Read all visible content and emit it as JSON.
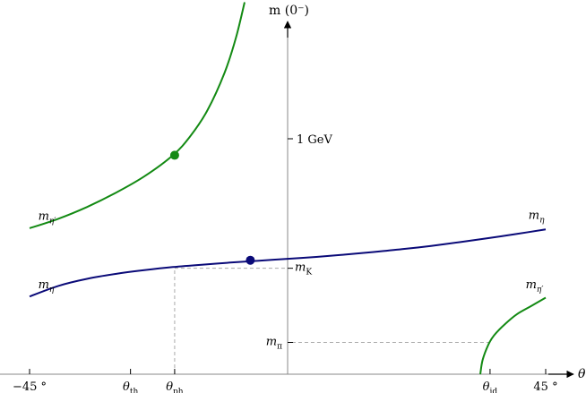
{
  "chart_data": {
    "type": "line",
    "title": "",
    "xlabel": "θ",
    "ylabel": "m (0⁻)",
    "xlim": [
      -45,
      45
    ],
    "grid": false,
    "x_ticks": [
      {
        "x": -45,
        "label": "−45 °"
      },
      {
        "x": -27.4,
        "label": "θ",
        "sub": "th"
      },
      {
        "x": -19.7,
        "label": "θ",
        "sub": "ph"
      },
      {
        "x": 35.3,
        "label": "θ",
        "sub": "id"
      },
      {
        "x": 45,
        "label": "45 °"
      }
    ],
    "y_ticks": [
      {
        "y": 1.0,
        "label": "1 GeV"
      },
      {
        "y": 0.45,
        "label": "m",
        "sub": "K"
      },
      {
        "y": 0.135,
        "label": "m",
        "sub": "π"
      }
    ],
    "series": [
      {
        "name": "m_η",
        "color": "#0a0a78",
        "x": [
          -45,
          -40,
          -35,
          -30,
          -25,
          -20,
          -15,
          -10,
          -5,
          0,
          5,
          10,
          15,
          20,
          25,
          30,
          35,
          40,
          45
        ],
        "y": [
          0.33,
          0.375,
          0.405,
          0.426,
          0.442,
          0.455,
          0.465,
          0.474,
          0.482,
          0.49,
          0.498,
          0.508,
          0.519,
          0.531,
          0.545,
          0.561,
          0.578,
          0.596,
          0.615
        ]
      },
      {
        "name": "m_η′ (left branch)",
        "color": "#138a13",
        "x": [
          -45,
          -40,
          -35,
          -30,
          -25,
          -20,
          -17,
          -14,
          -11,
          -9,
          -7.5
        ],
        "y": [
          0.62,
          0.66,
          0.71,
          0.77,
          0.84,
          0.93,
          1.01,
          1.12,
          1.28,
          1.43,
          1.58
        ]
      },
      {
        "name": "m_η′ (right branch)",
        "color": "#138a13",
        "x": [
          33.6,
          34,
          35,
          36,
          38,
          40,
          42.5,
          45
        ],
        "y": [
          0.0,
          0.06,
          0.125,
          0.165,
          0.215,
          0.255,
          0.29,
          0.325
        ]
      }
    ],
    "markers": [
      {
        "x": -19.7,
        "y": 0.93,
        "color": "#138a13"
      },
      {
        "x": -6.5,
        "y": 0.484,
        "color": "#0a0a78"
      }
    ],
    "reference_lines": [
      {
        "from": [
          -19.7,
          0
        ],
        "to": [
          -19.7,
          0.45
        ],
        "to_axis": [
          0,
          0.45
        ]
      },
      {
        "from": [
          35.3,
          0.135
        ],
        "to_axis": [
          0,
          0.135
        ]
      }
    ],
    "curve_labels": [
      {
        "text": "m",
        "sub": "η′",
        "x": -43.5,
        "y": 0.655
      },
      {
        "text": "m",
        "sub": "η",
        "x": -43.5,
        "y": 0.365
      },
      {
        "text": "m",
        "sub": "η",
        "x": 42,
        "y": 0.66
      },
      {
        "text": "m",
        "sub": "η′",
        "x": 41.5,
        "y": 0.365
      }
    ]
  }
}
